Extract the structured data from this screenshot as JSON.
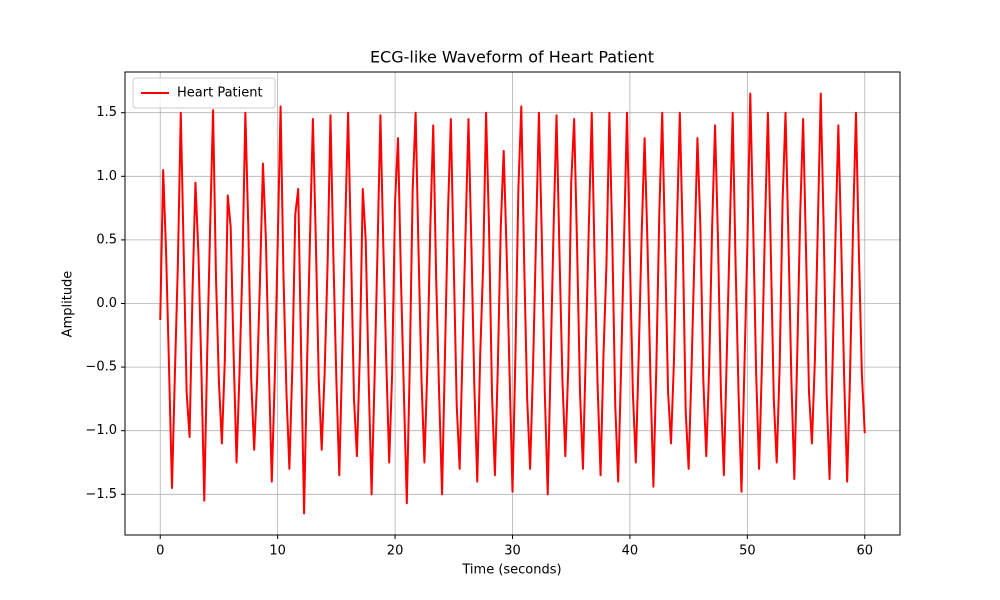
{
  "chart_data": {
    "type": "line",
    "title": "ECG-like Waveform of Heart Patient",
    "x_label": "Time (seconds)",
    "y_label": "Amplitude",
    "legend": "upper left",
    "grid": true,
    "xlim": [
      -3,
      63
    ],
    "ylim": [
      -1.82,
      1.82
    ],
    "xticks": [
      0,
      10,
      20,
      30,
      40,
      50,
      60
    ],
    "yticks": [
      {
        "value": -1.5,
        "label": "−1.5"
      },
      {
        "value": -1.0,
        "label": "−1.0"
      },
      {
        "value": -0.5,
        "label": "−0.5"
      },
      {
        "value": 0,
        "label": "0.0"
      },
      0.5,
      {
        "value": 1.0,
        "label": "1.0"
      },
      1.5
    ],
    "x": [
      0,
      0.25,
      0.5,
      0.75,
      1,
      1.25,
      1.5,
      1.75,
      2,
      2.25,
      2.5,
      2.75,
      3,
      3.25,
      3.5,
      3.75,
      4,
      4.25,
      4.5,
      4.75,
      5,
      5.25,
      5.5,
      5.75,
      6,
      6.25,
      6.5,
      6.75,
      7,
      7.25,
      7.5,
      7.75,
      8,
      8.25,
      8.5,
      8.75,
      9,
      9.25,
      9.5,
      9.75,
      10,
      10.25,
      10.5,
      10.75,
      11,
      11.25,
      11.5,
      11.75,
      12,
      12.25,
      12.5,
      12.75,
      13,
      13.25,
      13.5,
      13.75,
      14,
      14.25,
      14.5,
      14.75,
      15,
      15.25,
      15.5,
      15.75,
      16,
      16.25,
      16.5,
      16.75,
      17,
      17.25,
      17.5,
      17.75,
      18,
      18.25,
      18.5,
      18.75,
      19,
      19.25,
      19.5,
      19.75,
      20,
      20.25,
      20.5,
      20.75,
      21,
      21.25,
      21.5,
      21.75,
      22,
      22.25,
      22.5,
      22.75,
      23,
      23.25,
      23.5,
      23.75,
      24,
      24.25,
      24.5,
      24.75,
      25,
      25.25,
      25.5,
      25.75,
      26,
      26.25,
      26.5,
      26.75,
      27,
      27.25,
      27.5,
      27.75,
      28,
      28.25,
      28.5,
      28.75,
      29,
      29.25,
      29.5,
      29.75,
      30,
      30.25,
      30.5,
      30.75,
      31,
      31.25,
      31.5,
      31.75,
      32,
      32.25,
      32.5,
      32.75,
      33,
      33.25,
      33.5,
      33.75,
      34,
      34.25,
      34.5,
      34.75,
      35,
      35.25,
      35.5,
      35.75,
      36,
      36.25,
      36.5,
      36.75,
      37,
      37.25,
      37.5,
      37.75,
      38,
      38.25,
      38.5,
      38.75,
      39,
      39.25,
      39.5,
      39.75,
      40,
      40.25,
      40.5,
      40.75,
      41,
      41.25,
      41.5,
      41.75,
      42,
      42.25,
      42.5,
      42.75,
      43,
      43.25,
      43.5,
      43.75,
      44,
      44.25,
      44.5,
      44.75,
      45,
      45.25,
      45.5,
      45.75,
      46,
      46.25,
      46.5,
      46.75,
      47,
      47.25,
      47.5,
      47.75,
      48,
      48.25,
      48.5,
      48.75,
      49,
      49.25,
      49.5,
      49.75,
      50,
      50.25,
      50.5,
      50.75,
      51,
      51.25,
      51.5,
      51.75,
      52,
      52.25,
      52.5,
      52.75,
      53,
      53.25,
      53.5,
      53.75,
      54,
      54.25,
      54.5,
      54.75,
      55,
      55.25,
      55.5,
      55.75,
      56,
      56.25,
      56.5,
      56.75,
      57,
      57.25,
      57.5,
      57.75,
      58,
      58.25,
      58.5,
      58.75,
      59,
      59.25,
      59.5,
      59.75,
      60
    ],
    "series": [
      {
        "name": "Heart Patient",
        "color": "#ff0000",
        "values": [
          -0.13,
          1.05,
          0.4,
          -0.5,
          -1.45,
          -0.55,
          0.3,
          1.5,
          0.4,
          -0.7,
          -1.05,
          0.1,
          0.95,
          0.4,
          -0.5,
          -1.55,
          -0.4,
          0.6,
          1.52,
          0.2,
          -0.62,
          -1.1,
          -0.45,
          0.85,
          0.6,
          -0.4,
          -1.25,
          -0.55,
          0.3,
          1.5,
          0.6,
          -0.6,
          -1.15,
          -0.6,
          0.2,
          1.1,
          0.5,
          -0.5,
          -1.4,
          -0.6,
          0.45,
          1.55,
          0.2,
          -0.7,
          -1.3,
          -0.5,
          0.7,
          0.9,
          -0.4,
          -1.65,
          -0.5,
          0.5,
          1.45,
          0.5,
          -0.6,
          -1.15,
          -0.55,
          0.3,
          1.48,
          0.35,
          -0.6,
          -1.35,
          -0.4,
          0.6,
          1.5,
          0.4,
          -0.75,
          -1.2,
          -0.4,
          0.9,
          0.5,
          -0.6,
          -1.5,
          -0.6,
          0.4,
          1.48,
          0.45,
          -0.45,
          -1.25,
          -0.55,
          0.8,
          1.3,
          0.2,
          -0.7,
          -1.57,
          -0.5,
          0.9,
          1.5,
          0.4,
          -0.6,
          -1.25,
          -0.5,
          0.6,
          1.4,
          0.2,
          -0.7,
          -1.5,
          -0.4,
          0.7,
          1.45,
          0.3,
          -0.8,
          -1.3,
          -0.35,
          0.55,
          1.45,
          0.45,
          -0.65,
          -1.4,
          -0.4,
          0.3,
          1.5,
          0.6,
          -0.7,
          -1.35,
          -0.5,
          0.6,
          1.2,
          0.4,
          -0.55,
          -1.48,
          -0.4,
          0.9,
          1.55,
          0.3,
          -0.75,
          -1.3,
          -0.5,
          0.5,
          1.5,
          0.5,
          -0.7,
          -1.5,
          -0.45,
          0.6,
          1.48,
          0.4,
          -0.6,
          -1.2,
          -0.5,
          0.95,
          1.45,
          0.45,
          -0.7,
          -1.3,
          -0.35,
          0.6,
          1.5,
          0.3,
          -0.65,
          -1.35,
          -0.4,
          0.3,
          1.5,
          0.5,
          -0.8,
          -1.4,
          -0.5,
          0.5,
          1.5,
          0.35,
          -0.7,
          -1.25,
          -0.4,
          0.55,
          1.3,
          0.45,
          -0.6,
          -1.44,
          -0.5,
          0.7,
          1.5,
          0.4,
          -0.7,
          -1.1,
          -0.45,
          0.6,
          1.5,
          0.5,
          -0.85,
          -1.3,
          -0.5,
          0.4,
          1.3,
          0.6,
          -0.6,
          -1.2,
          -0.5,
          0.6,
          1.4,
          0.5,
          -0.7,
          -1.35,
          -0.4,
          0.55,
          1.5,
          0.3,
          -0.7,
          -1.48,
          -0.5,
          0.45,
          1.65,
          0.6,
          -0.55,
          -1.3,
          -0.45,
          0.6,
          1.5,
          0.4,
          -0.75,
          -1.25,
          -0.5,
          0.8,
          1.5,
          0.5,
          -0.6,
          -1.38,
          -0.4,
          0.7,
          1.45,
          0.4,
          -0.7,
          -1.1,
          -0.45,
          0.6,
          1.65,
          0.6,
          -0.7,
          -1.38,
          -0.5,
          0.5,
          1.4,
          0.45,
          -0.6,
          -1.4,
          -0.55,
          0.6,
          1.5,
          0.4,
          -0.55,
          -1.02
        ]
      }
    ]
  }
}
